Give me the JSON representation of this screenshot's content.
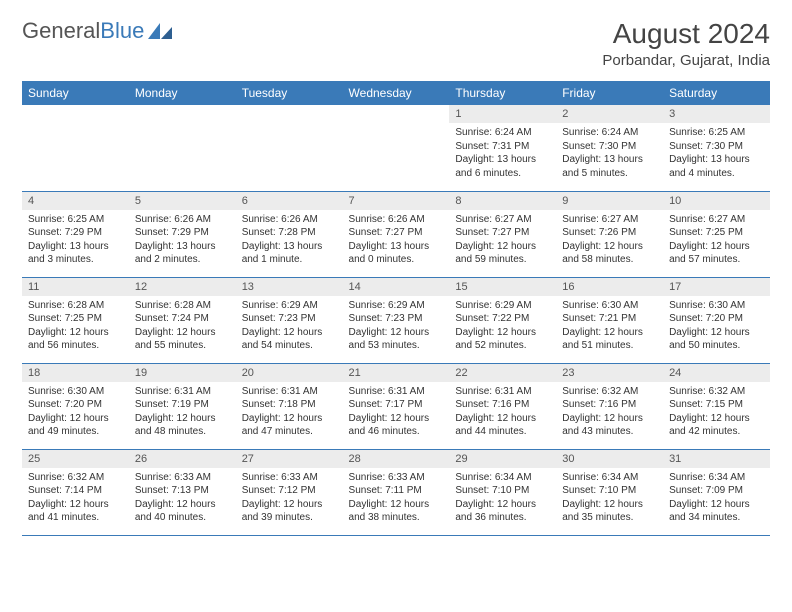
{
  "logo": {
    "word1": "General",
    "word2": "Blue"
  },
  "title": "August 2024",
  "location": "Porbandar, Gujarat, India",
  "colors": {
    "header_bg": "#3a7ab8",
    "header_fg": "#ffffff",
    "daynum_bg": "#ececec",
    "border": "#3a7ab8",
    "text": "#333333",
    "title": "#444444"
  },
  "fonts": {
    "base_family": "Arial",
    "title_size_pt": 21,
    "location_size_pt": 11,
    "th_size_pt": 9,
    "cell_size_pt": 7.5
  },
  "weekdays": [
    "Sunday",
    "Monday",
    "Tuesday",
    "Wednesday",
    "Thursday",
    "Friday",
    "Saturday"
  ],
  "weeks": [
    [
      null,
      null,
      null,
      null,
      {
        "n": "1",
        "sr": "Sunrise: 6:24 AM",
        "ss": "Sunset: 7:31 PM",
        "dl": "Daylight: 13 hours and 6 minutes."
      },
      {
        "n": "2",
        "sr": "Sunrise: 6:24 AM",
        "ss": "Sunset: 7:30 PM",
        "dl": "Daylight: 13 hours and 5 minutes."
      },
      {
        "n": "3",
        "sr": "Sunrise: 6:25 AM",
        "ss": "Sunset: 7:30 PM",
        "dl": "Daylight: 13 hours and 4 minutes."
      }
    ],
    [
      {
        "n": "4",
        "sr": "Sunrise: 6:25 AM",
        "ss": "Sunset: 7:29 PM",
        "dl": "Daylight: 13 hours and 3 minutes."
      },
      {
        "n": "5",
        "sr": "Sunrise: 6:26 AM",
        "ss": "Sunset: 7:29 PM",
        "dl": "Daylight: 13 hours and 2 minutes."
      },
      {
        "n": "6",
        "sr": "Sunrise: 6:26 AM",
        "ss": "Sunset: 7:28 PM",
        "dl": "Daylight: 13 hours and 1 minute."
      },
      {
        "n": "7",
        "sr": "Sunrise: 6:26 AM",
        "ss": "Sunset: 7:27 PM",
        "dl": "Daylight: 13 hours and 0 minutes."
      },
      {
        "n": "8",
        "sr": "Sunrise: 6:27 AM",
        "ss": "Sunset: 7:27 PM",
        "dl": "Daylight: 12 hours and 59 minutes."
      },
      {
        "n": "9",
        "sr": "Sunrise: 6:27 AM",
        "ss": "Sunset: 7:26 PM",
        "dl": "Daylight: 12 hours and 58 minutes."
      },
      {
        "n": "10",
        "sr": "Sunrise: 6:27 AM",
        "ss": "Sunset: 7:25 PM",
        "dl": "Daylight: 12 hours and 57 minutes."
      }
    ],
    [
      {
        "n": "11",
        "sr": "Sunrise: 6:28 AM",
        "ss": "Sunset: 7:25 PM",
        "dl": "Daylight: 12 hours and 56 minutes."
      },
      {
        "n": "12",
        "sr": "Sunrise: 6:28 AM",
        "ss": "Sunset: 7:24 PM",
        "dl": "Daylight: 12 hours and 55 minutes."
      },
      {
        "n": "13",
        "sr": "Sunrise: 6:29 AM",
        "ss": "Sunset: 7:23 PM",
        "dl": "Daylight: 12 hours and 54 minutes."
      },
      {
        "n": "14",
        "sr": "Sunrise: 6:29 AM",
        "ss": "Sunset: 7:23 PM",
        "dl": "Daylight: 12 hours and 53 minutes."
      },
      {
        "n": "15",
        "sr": "Sunrise: 6:29 AM",
        "ss": "Sunset: 7:22 PM",
        "dl": "Daylight: 12 hours and 52 minutes."
      },
      {
        "n": "16",
        "sr": "Sunrise: 6:30 AM",
        "ss": "Sunset: 7:21 PM",
        "dl": "Daylight: 12 hours and 51 minutes."
      },
      {
        "n": "17",
        "sr": "Sunrise: 6:30 AM",
        "ss": "Sunset: 7:20 PM",
        "dl": "Daylight: 12 hours and 50 minutes."
      }
    ],
    [
      {
        "n": "18",
        "sr": "Sunrise: 6:30 AM",
        "ss": "Sunset: 7:20 PM",
        "dl": "Daylight: 12 hours and 49 minutes."
      },
      {
        "n": "19",
        "sr": "Sunrise: 6:31 AM",
        "ss": "Sunset: 7:19 PM",
        "dl": "Daylight: 12 hours and 48 minutes."
      },
      {
        "n": "20",
        "sr": "Sunrise: 6:31 AM",
        "ss": "Sunset: 7:18 PM",
        "dl": "Daylight: 12 hours and 47 minutes."
      },
      {
        "n": "21",
        "sr": "Sunrise: 6:31 AM",
        "ss": "Sunset: 7:17 PM",
        "dl": "Daylight: 12 hours and 46 minutes."
      },
      {
        "n": "22",
        "sr": "Sunrise: 6:31 AM",
        "ss": "Sunset: 7:16 PM",
        "dl": "Daylight: 12 hours and 44 minutes."
      },
      {
        "n": "23",
        "sr": "Sunrise: 6:32 AM",
        "ss": "Sunset: 7:16 PM",
        "dl": "Daylight: 12 hours and 43 minutes."
      },
      {
        "n": "24",
        "sr": "Sunrise: 6:32 AM",
        "ss": "Sunset: 7:15 PM",
        "dl": "Daylight: 12 hours and 42 minutes."
      }
    ],
    [
      {
        "n": "25",
        "sr": "Sunrise: 6:32 AM",
        "ss": "Sunset: 7:14 PM",
        "dl": "Daylight: 12 hours and 41 minutes."
      },
      {
        "n": "26",
        "sr": "Sunrise: 6:33 AM",
        "ss": "Sunset: 7:13 PM",
        "dl": "Daylight: 12 hours and 40 minutes."
      },
      {
        "n": "27",
        "sr": "Sunrise: 6:33 AM",
        "ss": "Sunset: 7:12 PM",
        "dl": "Daylight: 12 hours and 39 minutes."
      },
      {
        "n": "28",
        "sr": "Sunrise: 6:33 AM",
        "ss": "Sunset: 7:11 PM",
        "dl": "Daylight: 12 hours and 38 minutes."
      },
      {
        "n": "29",
        "sr": "Sunrise: 6:34 AM",
        "ss": "Sunset: 7:10 PM",
        "dl": "Daylight: 12 hours and 36 minutes."
      },
      {
        "n": "30",
        "sr": "Sunrise: 6:34 AM",
        "ss": "Sunset: 7:10 PM",
        "dl": "Daylight: 12 hours and 35 minutes."
      },
      {
        "n": "31",
        "sr": "Sunrise: 6:34 AM",
        "ss": "Sunset: 7:09 PM",
        "dl": "Daylight: 12 hours and 34 minutes."
      }
    ]
  ]
}
